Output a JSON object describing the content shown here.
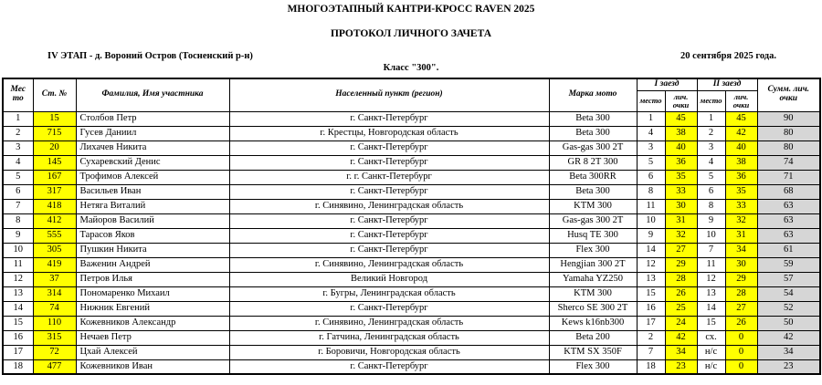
{
  "colors": {
    "highlight_yellow": "#ffff00",
    "total_gray": "#d6d6d6"
  },
  "header": {
    "title": "МНОГОЭТАПНЫЙ КАНТРИ-КРОСС RAVEN 2025",
    "subtitle": "ПРОТОКОЛ ЛИЧНОГО ЗАЧЕТА",
    "stage": "IV ЭТАП - д. Вороний Остров (Тосненский р-н)",
    "date": "20 сентября 2025 года.",
    "class_line": "Класс \"300\"."
  },
  "table": {
    "headers": {
      "place": "Мес то",
      "number": "Ст. №",
      "name": "Фамилия, Имя участника",
      "region": "Населенный пункт (регион)",
      "bike": "Марка мото",
      "race1": "I заезд",
      "race2": "II заезд",
      "sub_place": "место",
      "sub_points": "лич. очки",
      "total": "Сумм. лич. очки"
    },
    "rows": [
      {
        "place": "1",
        "number": "15",
        "name": "Столбов Петр",
        "region": "г. Санкт-Петербург",
        "bike": "Beta 300",
        "r1_place": "1",
        "r1_pts": "45",
        "r2_place": "1",
        "r2_pts": "45",
        "total": "90"
      },
      {
        "place": "2",
        "number": "715",
        "name": "Гусев Даниил",
        "region": "г. Крестцы, Новгородская область",
        "bike": "Beta 300",
        "r1_place": "4",
        "r1_pts": "38",
        "r2_place": "2",
        "r2_pts": "42",
        "total": "80"
      },
      {
        "place": "3",
        "number": "20",
        "name": "Лихачев Никита",
        "region": "г. Санкт-Петербург",
        "bike": "Gas-gas 300 2T",
        "r1_place": "3",
        "r1_pts": "40",
        "r2_place": "3",
        "r2_pts": "40",
        "total": "80"
      },
      {
        "place": "4",
        "number": "145",
        "name": "Сухаревский Денис",
        "region": "г. Санкт-Петербург",
        "bike": "GR 8 2T 300",
        "r1_place": "5",
        "r1_pts": "36",
        "r2_place": "4",
        "r2_pts": "38",
        "total": "74"
      },
      {
        "place": "5",
        "number": "167",
        "name": "Трофимов Алексей",
        "region": "г. г. Санкт-Петербург",
        "bike": "Beta 300RR",
        "r1_place": "6",
        "r1_pts": "35",
        "r2_place": "5",
        "r2_pts": "36",
        "total": "71"
      },
      {
        "place": "6",
        "number": "317",
        "name": "Васильев Иван",
        "region": "г. Санкт-Петербург",
        "bike": "Beta 300",
        "r1_place": "8",
        "r1_pts": "33",
        "r2_place": "6",
        "r2_pts": "35",
        "total": "68"
      },
      {
        "place": "7",
        "number": "418",
        "name": "Нетяга Виталий",
        "region": "г. Синявино, Ленинградская область",
        "bike": "KTM 300",
        "r1_place": "11",
        "r1_pts": "30",
        "r2_place": "8",
        "r2_pts": "33",
        "total": "63"
      },
      {
        "place": "8",
        "number": "412",
        "name": "Майоров Василий",
        "region": "г. Санкт-Петербург",
        "bike": "Gas-gas 300 2T",
        "r1_place": "10",
        "r1_pts": "31",
        "r2_place": "9",
        "r2_pts": "32",
        "total": "63"
      },
      {
        "place": "9",
        "number": "555",
        "name": "Тарасов Яков",
        "region": "г. Санкт-Петербург",
        "bike": "Husq TE 300",
        "r1_place": "9",
        "r1_pts": "32",
        "r2_place": "10",
        "r2_pts": "31",
        "total": "63"
      },
      {
        "place": "10",
        "number": "305",
        "name": "Пушкин Никита",
        "region": "г. Санкт-Петербург",
        "bike": "Flex 300",
        "r1_place": "14",
        "r1_pts": "27",
        "r2_place": "7",
        "r2_pts": "34",
        "total": "61"
      },
      {
        "place": "11",
        "number": "419",
        "name": "Важенин Андрей",
        "region": "г. Синявино, Ленинградская область",
        "bike": "Hengjian 300 2T",
        "r1_place": "12",
        "r1_pts": "29",
        "r2_place": "11",
        "r2_pts": "30",
        "total": "59"
      },
      {
        "place": "12",
        "number": "37",
        "name": "Петров Илья",
        "region": "Великий Новгород",
        "bike": "Yamaha YZ250",
        "r1_place": "13",
        "r1_pts": "28",
        "r2_place": "12",
        "r2_pts": "29",
        "total": "57"
      },
      {
        "place": "13",
        "number": "314",
        "name": "Пономаренко Михаил",
        "region": "г. Бугры, Ленинградская область",
        "bike": "KTM 300",
        "r1_place": "15",
        "r1_pts": "26",
        "r2_place": "13",
        "r2_pts": "28",
        "total": "54"
      },
      {
        "place": "14",
        "number": "74",
        "name": "Нижник Евгений",
        "region": "г. Санкт-Петербург",
        "bike": "Sherco SE 300 2T",
        "r1_place": "16",
        "r1_pts": "25",
        "r2_place": "14",
        "r2_pts": "27",
        "total": "52"
      },
      {
        "place": "15",
        "number": "110",
        "name": "Кожевников Александр",
        "region": "г. Синявино, Ленинградская область",
        "bike": "Kews k16nb300",
        "r1_place": "17",
        "r1_pts": "24",
        "r2_place": "15",
        "r2_pts": "26",
        "total": "50"
      },
      {
        "place": "16",
        "number": "315",
        "name": "Нечаев Петр",
        "region": "г. Гатчина, Ленинградская область",
        "bike": "Beta 200",
        "r1_place": "2",
        "r1_pts": "42",
        "r2_place": "сх.",
        "r2_pts": "0",
        "total": "42"
      },
      {
        "place": "17",
        "number": "72",
        "name": "Цхай Алексей",
        "region": "г. Боровичи, Новгородская область",
        "bike": "KTM SX 350F",
        "r1_place": "7",
        "r1_pts": "34",
        "r2_place": "н/с",
        "r2_pts": "0",
        "total": "34"
      },
      {
        "place": "18",
        "number": "477",
        "name": "Кожевников Иван",
        "region": "г. Санкт-Петербург",
        "bike": "Flex 300",
        "r1_place": "18",
        "r1_pts": "23",
        "r2_place": "н/с",
        "r2_pts": "0",
        "total": "23"
      }
    ]
  }
}
